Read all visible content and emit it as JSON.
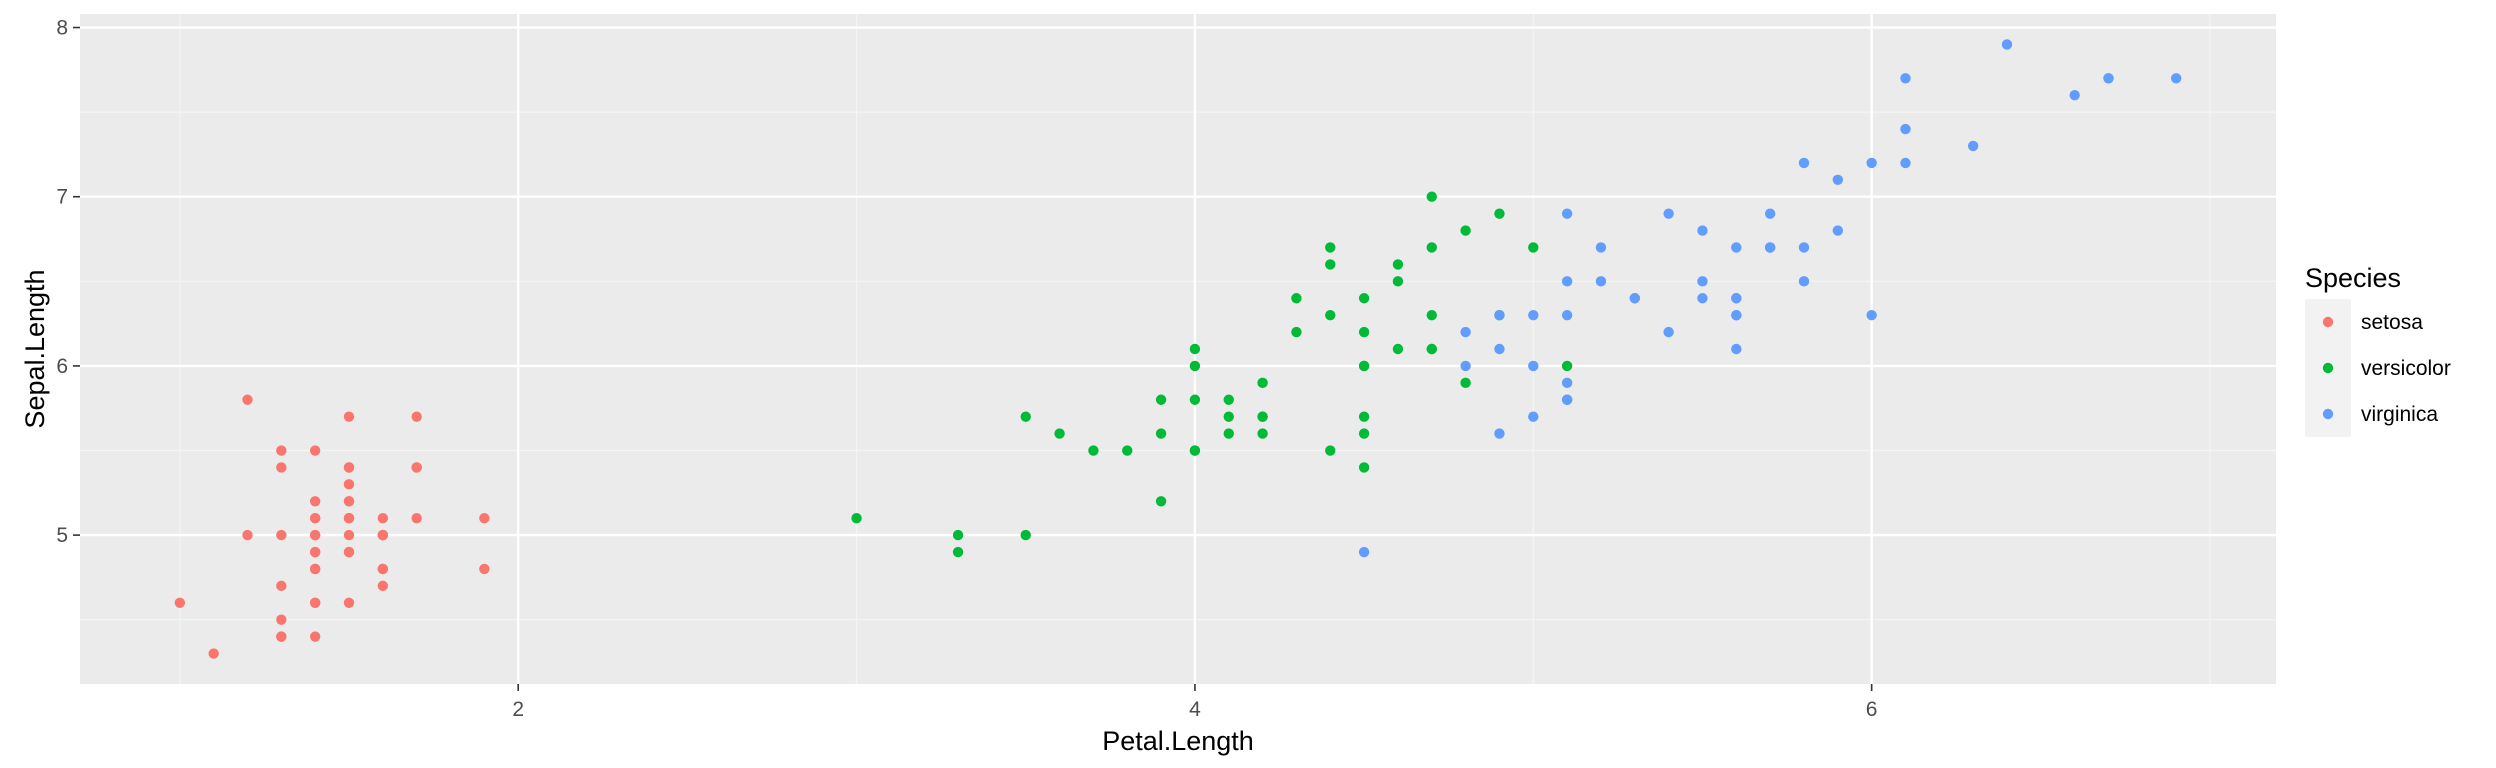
{
  "chart_data": {
    "type": "scatter",
    "title": "",
    "xlabel": "Petal.Length",
    "ylabel": "Sepal.Length",
    "xlim": [
      0.705,
      7.195
    ],
    "ylim": [
      4.12,
      8.08
    ],
    "x_ticks": [
      2,
      4,
      6
    ],
    "x_minor": [
      1,
      3,
      5,
      7
    ],
    "y_ticks": [
      5,
      6,
      7,
      8
    ],
    "y_minor": [
      4.5,
      5.5,
      6.5,
      7.5
    ],
    "grid": true,
    "background": "#EBEBEB",
    "legend": {
      "title": "Species",
      "position": "right"
    },
    "series": [
      {
        "name": "setosa",
        "color": "#F8766D",
        "points": [
          [
            1.4,
            5.1
          ],
          [
            1.4,
            4.9
          ],
          [
            1.3,
            4.7
          ],
          [
            1.5,
            4.6
          ],
          [
            1.4,
            5.0
          ],
          [
            1.7,
            5.4
          ],
          [
            1.4,
            4.6
          ],
          [
            1.5,
            5.0
          ],
          [
            1.4,
            4.4
          ],
          [
            1.5,
            4.9
          ],
          [
            1.5,
            5.4
          ],
          [
            1.6,
            4.8
          ],
          [
            1.4,
            4.8
          ],
          [
            1.1,
            4.3
          ],
          [
            1.2,
            5.8
          ],
          [
            1.5,
            5.7
          ],
          [
            1.3,
            5.4
          ],
          [
            1.4,
            5.1
          ],
          [
            1.7,
            5.7
          ],
          [
            1.5,
            5.1
          ],
          [
            1.7,
            5.4
          ],
          [
            1.5,
            5.1
          ],
          [
            1.0,
            4.6
          ],
          [
            1.7,
            5.1
          ],
          [
            1.9,
            4.8
          ],
          [
            1.6,
            5.0
          ],
          [
            1.6,
            5.0
          ],
          [
            1.5,
            5.2
          ],
          [
            1.4,
            5.2
          ],
          [
            1.6,
            4.7
          ],
          [
            1.6,
            4.8
          ],
          [
            1.5,
            5.4
          ],
          [
            1.5,
            5.2
          ],
          [
            1.4,
            5.5
          ],
          [
            1.5,
            4.9
          ],
          [
            1.2,
            5.0
          ],
          [
            1.3,
            5.5
          ],
          [
            1.4,
            4.9
          ],
          [
            1.3,
            4.4
          ],
          [
            1.5,
            5.1
          ],
          [
            1.3,
            5.0
          ],
          [
            1.3,
            4.5
          ],
          [
            1.3,
            4.4
          ],
          [
            1.6,
            5.0
          ],
          [
            1.9,
            5.1
          ],
          [
            1.4,
            4.8
          ],
          [
            1.6,
            5.1
          ],
          [
            1.4,
            4.6
          ],
          [
            1.5,
            5.3
          ],
          [
            1.4,
            5.0
          ]
        ]
      },
      {
        "name": "versicolor",
        "color": "#00BA38",
        "points": [
          [
            4.7,
            7.0
          ],
          [
            4.5,
            6.4
          ],
          [
            4.9,
            6.9
          ],
          [
            4.0,
            5.5
          ],
          [
            4.6,
            6.5
          ],
          [
            4.5,
            5.7
          ],
          [
            4.7,
            6.3
          ],
          [
            3.3,
            4.9
          ],
          [
            4.6,
            6.6
          ],
          [
            3.9,
            5.2
          ],
          [
            3.5,
            5.0
          ],
          [
            4.2,
            5.9
          ],
          [
            4.0,
            6.0
          ],
          [
            4.7,
            6.1
          ],
          [
            3.6,
            5.6
          ],
          [
            4.4,
            6.7
          ],
          [
            4.5,
            5.6
          ],
          [
            4.1,
            5.8
          ],
          [
            4.5,
            6.2
          ],
          [
            3.9,
            5.6
          ],
          [
            4.8,
            5.9
          ],
          [
            4.0,
            6.1
          ],
          [
            4.9,
            6.3
          ],
          [
            4.7,
            6.1
          ],
          [
            4.3,
            6.4
          ],
          [
            4.4,
            6.6
          ],
          [
            4.8,
            6.8
          ],
          [
            5.0,
            6.7
          ],
          [
            4.5,
            6.0
          ],
          [
            3.5,
            5.7
          ],
          [
            3.8,
            5.5
          ],
          [
            3.7,
            5.5
          ],
          [
            3.9,
            5.8
          ],
          [
            5.1,
            6.0
          ],
          [
            4.5,
            5.4
          ],
          [
            4.5,
            6.0
          ],
          [
            4.7,
            6.7
          ],
          [
            4.4,
            6.3
          ],
          [
            4.1,
            5.6
          ],
          [
            4.0,
            5.5
          ],
          [
            4.4,
            5.5
          ],
          [
            4.6,
            6.1
          ],
          [
            4.0,
            5.8
          ],
          [
            3.3,
            5.0
          ],
          [
            4.2,
            5.6
          ],
          [
            4.2,
            5.7
          ],
          [
            4.2,
            5.7
          ],
          [
            4.3,
            6.2
          ],
          [
            3.0,
            5.1
          ],
          [
            4.1,
            5.7
          ]
        ]
      },
      {
        "name": "virginica",
        "color": "#619CFF",
        "points": [
          [
            6.0,
            6.3
          ],
          [
            5.1,
            5.8
          ],
          [
            5.9,
            7.1
          ],
          [
            5.6,
            6.3
          ],
          [
            5.8,
            6.5
          ],
          [
            6.6,
            7.6
          ],
          [
            4.5,
            4.9
          ],
          [
            6.3,
            7.3
          ],
          [
            5.8,
            6.7
          ],
          [
            6.1,
            7.2
          ],
          [
            5.1,
            6.5
          ],
          [
            5.3,
            6.4
          ],
          [
            5.5,
            6.8
          ],
          [
            5.0,
            5.7
          ],
          [
            5.1,
            5.8
          ],
          [
            5.3,
            6.4
          ],
          [
            5.5,
            6.5
          ],
          [
            6.7,
            7.7
          ],
          [
            6.9,
            7.7
          ],
          [
            5.0,
            6.0
          ],
          [
            5.7,
            6.9
          ],
          [
            4.9,
            5.6
          ],
          [
            6.7,
            7.7
          ],
          [
            4.9,
            6.3
          ],
          [
            5.7,
            6.7
          ],
          [
            6.0,
            7.2
          ],
          [
            4.8,
            6.2
          ],
          [
            4.9,
            6.1
          ],
          [
            5.6,
            6.4
          ],
          [
            5.8,
            7.2
          ],
          [
            6.1,
            7.4
          ],
          [
            6.4,
            7.9
          ],
          [
            5.6,
            6.4
          ],
          [
            5.1,
            6.3
          ],
          [
            5.6,
            6.1
          ],
          [
            6.1,
            7.7
          ],
          [
            5.6,
            6.3
          ],
          [
            5.5,
            6.4
          ],
          [
            4.8,
            6.0
          ],
          [
            5.4,
            6.9
          ],
          [
            5.6,
            6.7
          ],
          [
            5.1,
            6.9
          ],
          [
            5.1,
            5.8
          ],
          [
            5.9,
            6.8
          ],
          [
            5.7,
            6.7
          ],
          [
            5.2,
            6.7
          ],
          [
            5.0,
            6.3
          ],
          [
            5.2,
            6.5
          ],
          [
            5.4,
            6.2
          ],
          [
            5.1,
            5.9
          ]
        ]
      }
    ]
  }
}
